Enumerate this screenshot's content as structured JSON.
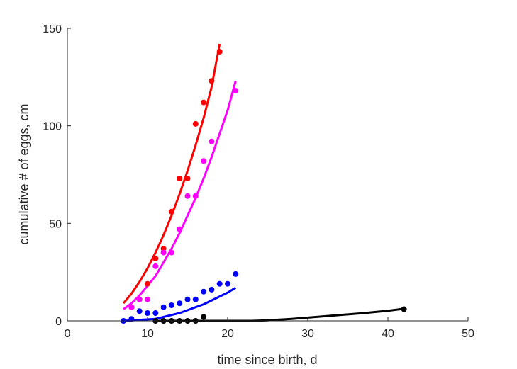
{
  "chart_data": {
    "type": "scatter",
    "title": "",
    "xlabel": "time since birth, d",
    "ylabel": "cumulative # of eggs, cm",
    "xlim": [
      0,
      50
    ],
    "ylim": [
      0,
      150
    ],
    "xticks": [
      "0",
      "10",
      "20",
      "30",
      "40",
      "50"
    ],
    "yticks": [
      "0",
      "50",
      "100",
      "150"
    ],
    "grid": false,
    "legend": "none",
    "series": [
      {
        "color": "#ff0000",
        "points": [
          [
            8,
            7
          ],
          [
            9,
            11
          ],
          [
            10,
            19
          ],
          [
            11,
            32
          ],
          [
            12,
            37
          ],
          [
            13,
            56
          ],
          [
            14,
            73
          ],
          [
            15,
            73
          ],
          [
            16,
            101
          ],
          [
            17,
            112
          ],
          [
            18,
            123
          ],
          [
            19,
            138
          ]
        ],
        "fit": [
          [
            7,
            9
          ],
          [
            8,
            14
          ],
          [
            9,
            20
          ],
          [
            10,
            27
          ],
          [
            11,
            35
          ],
          [
            12,
            44
          ],
          [
            13,
            54
          ],
          [
            14,
            65
          ],
          [
            15,
            77
          ],
          [
            16,
            90
          ],
          [
            17,
            104
          ],
          [
            18,
            120
          ],
          [
            19,
            142
          ]
        ]
      },
      {
        "color": "#ff00ff",
        "points": [
          [
            8,
            7
          ],
          [
            9,
            11
          ],
          [
            10,
            11
          ],
          [
            11,
            28
          ],
          [
            12,
            35
          ],
          [
            13,
            35
          ],
          [
            14,
            47
          ],
          [
            15,
            64
          ],
          [
            16,
            64
          ],
          [
            17,
            82
          ],
          [
            18,
            92
          ],
          [
            21,
            118
          ]
        ],
        "fit": [
          [
            7,
            6
          ],
          [
            8,
            9
          ],
          [
            9,
            13
          ],
          [
            10,
            18
          ],
          [
            11,
            23
          ],
          [
            12,
            30
          ],
          [
            13,
            37
          ],
          [
            14,
            45
          ],
          [
            15,
            54
          ],
          [
            16,
            63
          ],
          [
            17,
            73
          ],
          [
            18,
            84
          ],
          [
            19,
            96
          ],
          [
            20,
            108
          ],
          [
            21,
            123
          ]
        ]
      },
      {
        "color": "#0000ff",
        "points": [
          [
            7,
            0
          ],
          [
            8,
            1
          ],
          [
            9,
            5
          ],
          [
            10,
            4
          ],
          [
            11,
            4
          ],
          [
            12,
            7
          ],
          [
            13,
            8
          ],
          [
            14,
            9
          ],
          [
            15,
            11
          ],
          [
            16,
            11
          ],
          [
            17,
            15
          ],
          [
            18,
            16
          ],
          [
            19,
            19
          ],
          [
            20,
            19
          ],
          [
            21,
            24
          ]
        ],
        "fit": [
          [
            7,
            0
          ],
          [
            9,
            0.5
          ],
          [
            11,
            1
          ],
          [
            12,
            2
          ],
          [
            13,
            3
          ],
          [
            14,
            4
          ],
          [
            15,
            5.5
          ],
          [
            16,
            7
          ],
          [
            17,
            8.5
          ],
          [
            18,
            10.5
          ],
          [
            19,
            12.5
          ],
          [
            20,
            14.5
          ],
          [
            21,
            17
          ]
        ]
      },
      {
        "color": "#000000",
        "points": [
          [
            11,
            0
          ],
          [
            12,
            0
          ],
          [
            13,
            0
          ],
          [
            14,
            0
          ],
          [
            15,
            0
          ],
          [
            16,
            0
          ],
          [
            17,
            2
          ],
          [
            42,
            6
          ]
        ],
        "fit": [
          [
            11,
            0
          ],
          [
            15,
            0
          ],
          [
            20,
            0
          ],
          [
            23,
            0
          ],
          [
            25,
            0.3
          ],
          [
            28,
            1
          ],
          [
            31,
            2
          ],
          [
            34,
            3
          ],
          [
            37,
            4
          ],
          [
            40,
            5.2
          ],
          [
            42,
            6.2
          ]
        ]
      }
    ]
  }
}
